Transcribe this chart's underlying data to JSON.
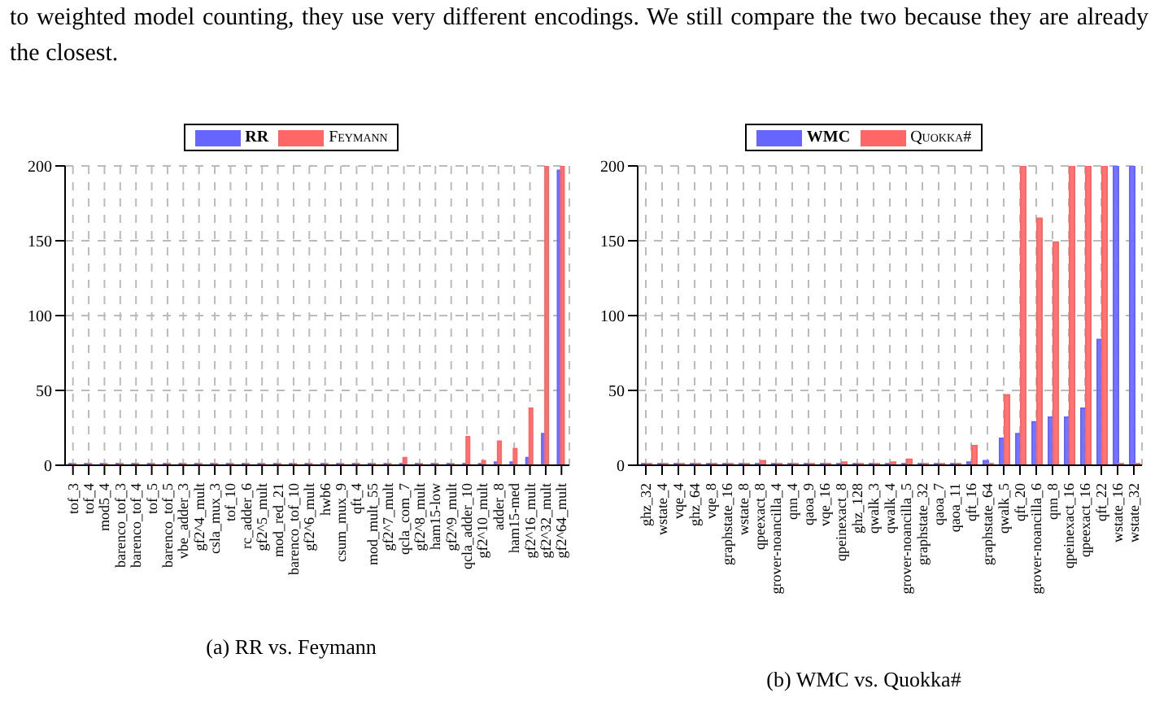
{
  "chart_data": [
    {
      "type": "bar",
      "title": "(a) RR vs. Feymann",
      "annotations": [
        "to weighted model counting, they use very different encodings. We still compare the two because they are already the closest."
      ],
      "categories": [
        "tof_3",
        "tof_4",
        "mod5_4",
        "barenco_tof_3",
        "barenco_tof_4",
        "tof_5",
        "barenco_tof_5",
        "vbe_adder_3",
        "gf2^4_mult",
        "csla_mux_3",
        "tof_10",
        "rc_adder_6",
        "gf2^5_mult",
        "mod_red_21",
        "barenco_tof_10",
        "gf2^6_mult",
        "hwb6",
        "csum_mux_9",
        "qft_4",
        "mod_mult_55",
        "gf2^7_mult",
        "qcla_com_7",
        "gf2^8_mult",
        "ham15-low",
        "gf2^9_mult",
        "qcla_adder_10",
        "gf2^10_mult",
        "adder_8",
        "ham15-med",
        "gf2^16_mult",
        "gf2^32_mult",
        "gf2^64_mult"
      ],
      "series": [
        {
          "name": "RR",
          "color": "#6666ff",
          "values": [
            1,
            1,
            1,
            1,
            1,
            1,
            1,
            1,
            1,
            1,
            1,
            1,
            1,
            1,
            1,
            1,
            1,
            1,
            1,
            1,
            1,
            1,
            1,
            1,
            1,
            1,
            1,
            2,
            2,
            5,
            21,
            197
          ]
        },
        {
          "name": "Feymann",
          "color": "#ff6666",
          "values": [
            1,
            1,
            1,
            1,
            1,
            1,
            1,
            1,
            1,
            1,
            1,
            1,
            1,
            1,
            1,
            1,
            1,
            1,
            1,
            1,
            1,
            5,
            1,
            1,
            1,
            19,
            3,
            16,
            11,
            38,
            200,
            200
          ]
        }
      ],
      "ylim": [
        0,
        200
      ],
      "yticks": [
        0,
        50,
        100,
        150,
        200
      ],
      "grid": true,
      "legend": "top"
    },
    {
      "type": "bar",
      "title": "(b) WMC vs. Quokka#",
      "categories": [
        "ghz_32",
        "wstate_4",
        "vqe_4",
        "ghz_64",
        "vqe_8",
        "graphstate_16",
        "wstate_8",
        "qpeexact_8",
        "grover-noancilla_4",
        "qnn_4",
        "qaoa_9",
        "vqe_16",
        "qpeinexact_8",
        "ghz_128",
        "qwalk_3",
        "qwalk_4",
        "grover-noancilla_5",
        "graphstate_32",
        "qaoa_7",
        "qaoa_11",
        "qft_16",
        "graphstate_64",
        "qwalk_5",
        "qft_20",
        "grover-noancilla_6",
        "qnn_8",
        "qpeinexact_16",
        "qpeexact_16",
        "qft_22",
        "wstate_16",
        "wstate_32"
      ],
      "series": [
        {
          "name": "WMC",
          "color": "#6666ff",
          "values": [
            1,
            1,
            1,
            1,
            1,
            1,
            1,
            1,
            1,
            1,
            1,
            1,
            1,
            1,
            1,
            1,
            1,
            1,
            1,
            1,
            2,
            3,
            18,
            21,
            29,
            32,
            32,
            38,
            84,
            200,
            200
          ]
        },
        {
          "name": "Quokka#",
          "color": "#ff6666",
          "values": [
            1,
            1,
            1,
            1,
            1,
            1,
            1,
            3,
            1,
            1,
            1,
            1,
            2,
            1,
            1,
            2,
            4,
            1,
            1,
            1,
            13,
            1,
            47,
            200,
            165,
            149,
            200,
            200,
            200,
            1,
            1
          ]
        }
      ],
      "ylim": [
        0,
        200
      ],
      "yticks": [
        0,
        50,
        100,
        150,
        200
      ],
      "grid": true,
      "legend": "top"
    }
  ]
}
